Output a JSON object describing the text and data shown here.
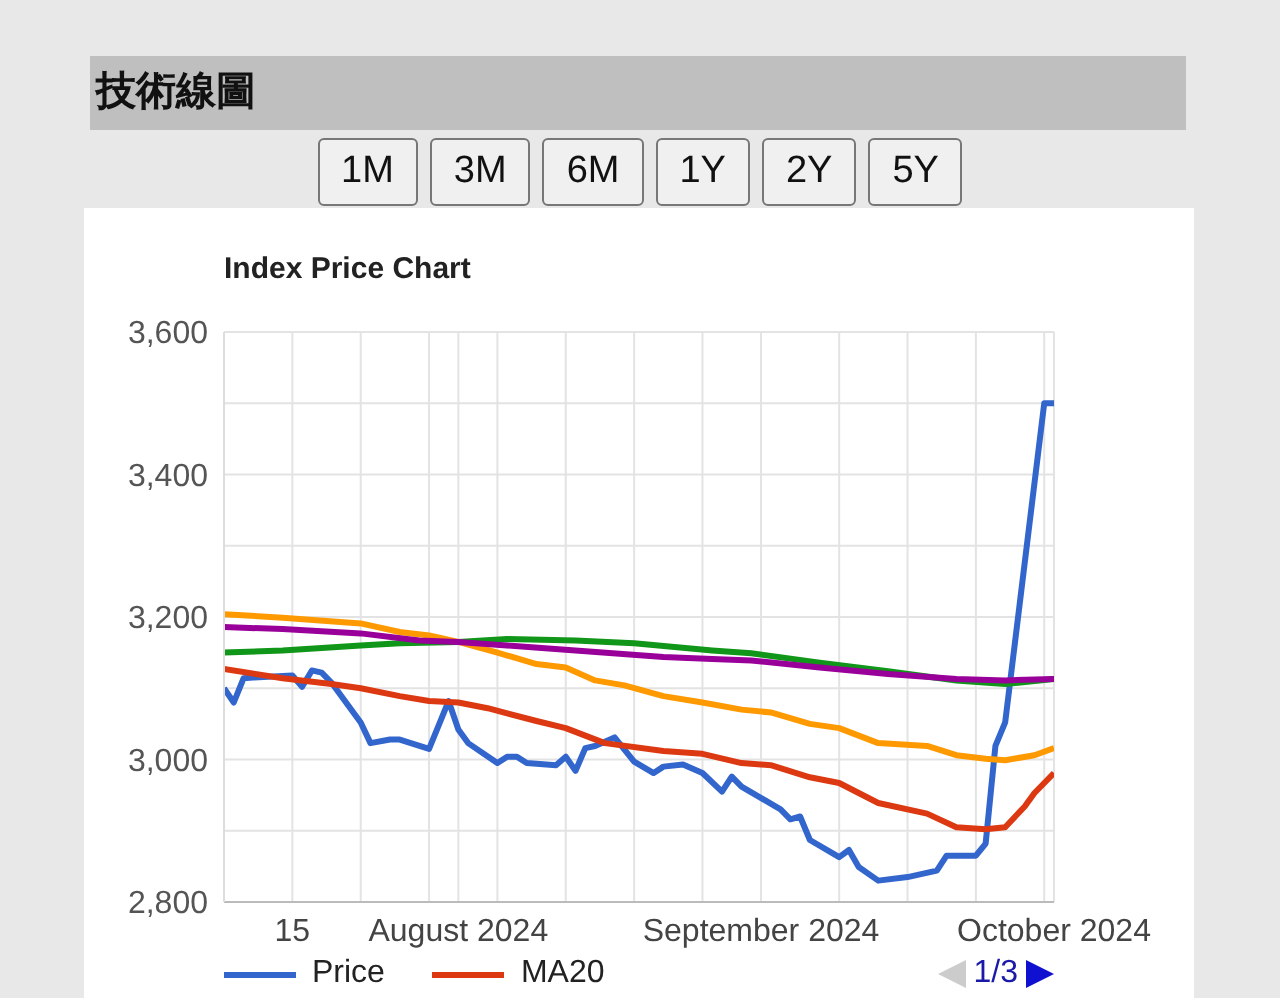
{
  "chart_data": {
    "type": "line",
    "title": "Index Price Chart",
    "annotations": [
      "技術線圖",
      "1M",
      "3M",
      "6M",
      "1Y",
      "2Y",
      "5Y",
      "1/3"
    ],
    "xlim": [
      "2024-07-08",
      "2024-10-01"
    ],
    "xticks": [
      {
        "value": "2024-07-15",
        "label": "15"
      },
      {
        "value": "2024-07-22",
        "label": null
      },
      {
        "value": "2024-07-29",
        "label": null
      },
      {
        "value": "2024-08-01",
        "label": "August 2024"
      },
      {
        "value": "2024-08-05",
        "label": null
      },
      {
        "value": "2024-08-12",
        "label": null
      },
      {
        "value": "2024-08-19",
        "label": null
      },
      {
        "value": "2024-08-26",
        "label": null
      },
      {
        "value": "2024-09-01",
        "label": "September 2024"
      },
      {
        "value": "2024-09-09",
        "label": null
      },
      {
        "value": "2024-09-16",
        "label": null
      },
      {
        "value": "2024-09-23",
        "label": null
      },
      {
        "value": "2024-09-30",
        "label": null
      },
      {
        "value": "2024-10-01",
        "label": "October 2024"
      }
    ],
    "ylim": [
      2800,
      3600
    ],
    "yticks": [
      {
        "value": 2800,
        "label": "2,800"
      },
      {
        "value": 2900,
        "label": null
      },
      {
        "value": 3000,
        "label": "3,000"
      },
      {
        "value": 3100,
        "label": null
      },
      {
        "value": 3200,
        "label": "3,200"
      },
      {
        "value": 3300,
        "label": null
      },
      {
        "value": 3400,
        "label": "3,400"
      },
      {
        "value": 3500,
        "label": null
      },
      {
        "value": 3600,
        "label": "3,600"
      }
    ],
    "grid": true,
    "legend": "bottom",
    "series": [
      {
        "name": "Price",
        "color": "#3366cc",
        "x": [
          "2024-07-08",
          "2024-07-09",
          "2024-07-10",
          "2024-07-11",
          "2024-07-15",
          "2024-07-16",
          "2024-07-17",
          "2024-07-18",
          "2024-07-19",
          "2024-07-22",
          "2024-07-23",
          "2024-07-25",
          "2024-07-26",
          "2024-07-29",
          "2024-07-31",
          "2024-08-01",
          "2024-08-02",
          "2024-08-05",
          "2024-08-06",
          "2024-08-07",
          "2024-08-08",
          "2024-08-11",
          "2024-08-12",
          "2024-08-13",
          "2024-08-14",
          "2024-08-15",
          "2024-08-17",
          "2024-08-19",
          "2024-08-21",
          "2024-08-22",
          "2024-08-24",
          "2024-08-26",
          "2024-08-28",
          "2024-08-29",
          "2024-08-30",
          "2024-09-03",
          "2024-09-04",
          "2024-09-05",
          "2024-09-06",
          "2024-09-09",
          "2024-09-10",
          "2024-09-11",
          "2024-09-13",
          "2024-09-16",
          "2024-09-19",
          "2024-09-20",
          "2024-09-23",
          "2024-09-24",
          "2024-09-25",
          "2024-09-26",
          "2024-09-30",
          "2024-10-01"
        ],
        "values": [
          3100,
          3080,
          3114,
          3115,
          3118,
          3102,
          3125,
          3122,
          3108,
          3052,
          3023,
          3028,
          3028,
          3015,
          3082,
          3042,
          3023,
          2995,
          3004,
          3004,
          2995,
          2992,
          3004,
          2984,
          3016,
          3019,
          3031,
          2997,
          2981,
          2990,
          2993,
          2981,
          2955,
          2976,
          2962,
          2930,
          2916,
          2920,
          2887,
          2863,
          2873,
          2849,
          2830,
          2835,
          2844,
          2865,
          2865,
          2882,
          3019,
          3052,
          3500,
          3500
        ]
      },
      {
        "name": "MA20",
        "color": "#dc3912",
        "x": [
          "2024-07-08",
          "2024-07-14",
          "2024-07-19",
          "2024-07-22",
          "2024-07-26",
          "2024-07-29",
          "2024-08-01",
          "2024-08-04",
          "2024-08-09",
          "2024-08-12",
          "2024-08-16",
          "2024-08-22",
          "2024-08-26",
          "2024-08-30",
          "2024-09-02",
          "2024-09-06",
          "2024-09-09",
          "2024-09-13",
          "2024-09-18",
          "2024-09-21",
          "2024-09-24",
          "2024-09-26",
          "2024-09-28",
          "2024-09-29",
          "2024-10-01"
        ],
        "values": [
          3127,
          3114,
          3106,
          3100,
          3089,
          3082,
          3080,
          3072,
          3054,
          3044,
          3023,
          3012,
          3008,
          2995,
          2992,
          2975,
          2967,
          2939,
          2924,
          2905,
          2902,
          2905,
          2934,
          2953,
          2981
        ]
      },
      {
        "color": "#ff9900",
        "x": [
          "2024-07-08",
          "2024-07-14",
          "2024-07-22",
          "2024-07-26",
          "2024-07-29",
          "2024-08-01",
          "2024-08-05",
          "2024-08-09",
          "2024-08-12",
          "2024-08-15",
          "2024-08-18",
          "2024-08-22",
          "2024-08-26",
          "2024-08-30",
          "2024-09-02",
          "2024-09-06",
          "2024-09-09",
          "2024-09-13",
          "2024-09-18",
          "2024-09-21",
          "2024-09-24",
          "2024-09-26",
          "2024-09-29",
          "2024-10-01"
        ],
        "values": [
          3204,
          3199,
          3191,
          3179,
          3174,
          3165,
          3150,
          3134,
          3129,
          3111,
          3104,
          3089,
          3080,
          3070,
          3066,
          3050,
          3044,
          3023,
          3019,
          3006,
          3001,
          2999,
          3006,
          3016
        ]
      },
      {
        "color": "#109618",
        "x": [
          "2024-07-08",
          "2024-07-14",
          "2024-07-22",
          "2024-07-26",
          "2024-08-01",
          "2024-08-06",
          "2024-08-13",
          "2024-08-19",
          "2024-08-27",
          "2024-08-31",
          "2024-09-07",
          "2024-09-14",
          "2024-09-21",
          "2024-09-26",
          "2024-10-01"
        ],
        "values": [
          3150,
          3153,
          3160,
          3163,
          3165,
          3169,
          3167,
          3163,
          3153,
          3149,
          3136,
          3124,
          3111,
          3106,
          3113
        ]
      },
      {
        "color": "#990099",
        "x": [
          "2024-07-08",
          "2024-07-14",
          "2024-07-22",
          "2024-07-28",
          "2024-08-01",
          "2024-08-06",
          "2024-08-13",
          "2024-08-22",
          "2024-08-27",
          "2024-08-31",
          "2024-09-07",
          "2024-09-14",
          "2024-09-21",
          "2024-09-26",
          "2024-10-01"
        ],
        "values": [
          3186,
          3183,
          3177,
          3167,
          3165,
          3160,
          3153,
          3144,
          3141,
          3139,
          3129,
          3120,
          3113,
          3111,
          3113
        ]
      }
    ]
  }
}
